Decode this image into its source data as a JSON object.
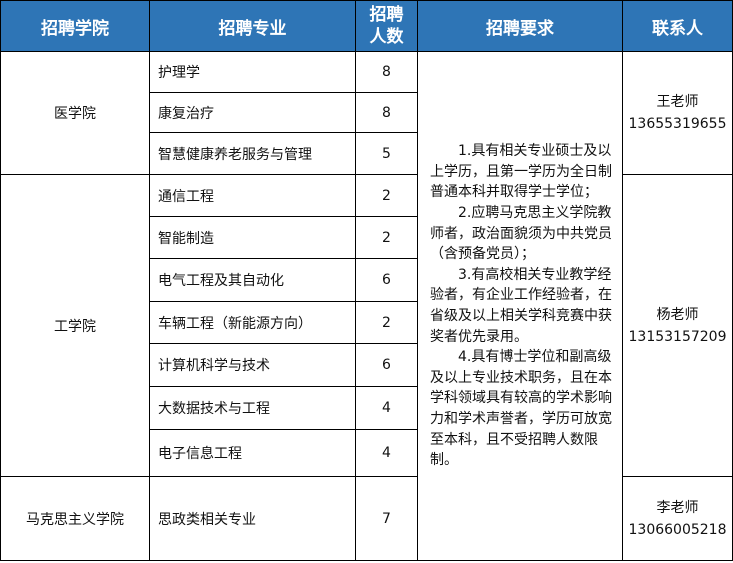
{
  "header": {
    "college": "招聘学院",
    "major": "招聘专业",
    "count_line1": "招聘",
    "count_line2": "人数",
    "requirements": "招聘要求",
    "contact": "联系人"
  },
  "groups": [
    {
      "college": "医学院",
      "contact_name": "王老师",
      "contact_phone": "13655319655",
      "rows": [
        {
          "major": "护理学",
          "count": "8"
        },
        {
          "major": "康复治疗",
          "count": "8"
        },
        {
          "major": "智慧健康养老服务与管理",
          "count": "5"
        }
      ]
    },
    {
      "college": "工学院",
      "contact_name": "杨老师",
      "contact_phone": "13153157209",
      "rows": [
        {
          "major": "通信工程",
          "count": "2"
        },
        {
          "major": "智能制造",
          "count": "2"
        },
        {
          "major": "电气工程及其自动化",
          "count": "6"
        },
        {
          "major": "车辆工程（新能源方向）",
          "count": "2"
        },
        {
          "major": "计算机科学与技术",
          "count": "6"
        },
        {
          "major": "大数据技术与工程",
          "count": "4"
        },
        {
          "major": "电子信息工程",
          "count": "4"
        }
      ]
    },
    {
      "college": "马克思主义学院",
      "contact_name": "李老师",
      "contact_phone": "13066005218",
      "rows": [
        {
          "major": "思政类相关专业",
          "count": "7"
        }
      ]
    }
  ],
  "requirements": [
    "1.具有相关专业硕士及以上学历，且第一学历为全日制普通本科并取得学士学位；",
    "2.应聘马克思主义学院教师者，政治面貌须为中共党员（含预备党员）；",
    "3.有高校相关专业教学经验者，有企业工作经验者，在省级及以上相关学科竞赛中获奖者优先录用。",
    "4.具有博士学位和副高级及以上专业技术职务，且在本学科领域具有较高的学术影响力和学术声誉者，学历可放宽至本科，且不受招聘人数限制。"
  ],
  "colors": {
    "header_bg": "#2e75b6",
    "header_text": "#ffffff"
  }
}
